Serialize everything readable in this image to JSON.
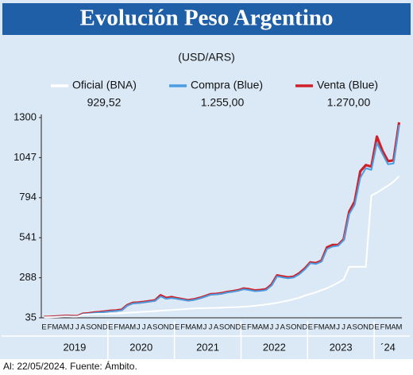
{
  "chart_data": {
    "type": "line",
    "title": "Evolución Peso Argentino",
    "subtitle": "(USD/ARS)",
    "footnote": "Al: 22/05/2024. Fuente: Ámbito.",
    "categories": [
      "E",
      "F",
      "M",
      "A",
      "M",
      "J",
      "J",
      "A",
      "S",
      "O",
      "N",
      "D",
      "E",
      "F",
      "M",
      "A",
      "M",
      "J",
      "J",
      "A",
      "S",
      "O",
      "N",
      "D",
      "E",
      "F",
      "M",
      "A",
      "M",
      "J",
      "J",
      "A",
      "S",
      "O",
      "N",
      "D",
      "E",
      "F",
      "M",
      "A",
      "M",
      "J",
      "J",
      "A",
      "S",
      "O",
      "N",
      "D",
      "E",
      "F",
      "M",
      "A",
      "M",
      "J",
      "J",
      "A",
      "S",
      "O",
      "N",
      "D",
      "E",
      "F",
      "M",
      "A",
      "M"
    ],
    "years": [
      "2019",
      "2020",
      "2021",
      "2022",
      "2023",
      "´24"
    ],
    "ylim": [
      35,
      1300
    ],
    "yticks": [
      35,
      288,
      541,
      794,
      1047,
      1300
    ],
    "series": [
      {
        "name": "Venta (Blue)",
        "color": "#d0202a",
        "legend_value": {
          "value": 1270,
          "label": "1.270,00"
        },
        "values": [
          40,
          41,
          43,
          45,
          47,
          46,
          45,
          60,
          63,
          68,
          71,
          75,
          79,
          81,
          86,
          115,
          129,
          131,
          135,
          140,
          145,
          177,
          160,
          166,
          158,
          152,
          146,
          151,
          160,
          171,
          184,
          186,
          190,
          198,
          203,
          209,
          220,
          215,
          208,
          210,
          215,
          244,
          303,
          296,
          290,
          295,
          316,
          346,
          385,
          380,
          395,
          480,
          495,
          495,
          530,
          705,
          770,
          960,
          1000,
          990,
          1180,
          1090,
          1025,
          1030,
          1270
        ]
      },
      {
        "name": "Compra (Blue)",
        "color": "#4a9de0",
        "legend_value": {
          "value": 1255,
          "label": "1.255,00"
        },
        "values": [
          38,
          39,
          41,
          43,
          45,
          44,
          43,
          58,
          60,
          65,
          68,
          72,
          76,
          78,
          83,
          112,
          126,
          128,
          132,
          137,
          142,
          170,
          155,
          160,
          155,
          149,
          143,
          148,
          157,
          168,
          181,
          183,
          187,
          195,
          200,
          206,
          215,
          210,
          203,
          205,
          210,
          239,
          297,
          290,
          285,
          290,
          310,
          340,
          380,
          375,
          390,
          470,
          485,
          490,
          525,
          690,
          750,
          920,
          980,
          970,
          1140,
          1070,
          1005,
          1010,
          1255
        ]
      },
      {
        "name": "Oficial (BNA)",
        "color": "#ffffff",
        "legend_value": {
          "value": 929.52,
          "label": "929,52"
        },
        "values": [
          38,
          39,
          40,
          42,
          44,
          42,
          42,
          55,
          57,
          59,
          60,
          60,
          61,
          62,
          64,
          67,
          69,
          71,
          73,
          75,
          77,
          80,
          82,
          84,
          87,
          89,
          92,
          94,
          95,
          96,
          97,
          98,
          99,
          101,
          102,
          103,
          105,
          108,
          111,
          115,
          119,
          124,
          130,
          137,
          144,
          153,
          162,
          175,
          186,
          196,
          209,
          222,
          239,
          257,
          278,
          357,
          357,
          357,
          357,
          808,
          826,
          848,
          870,
          895,
          929.52
        ]
      }
    ]
  }
}
